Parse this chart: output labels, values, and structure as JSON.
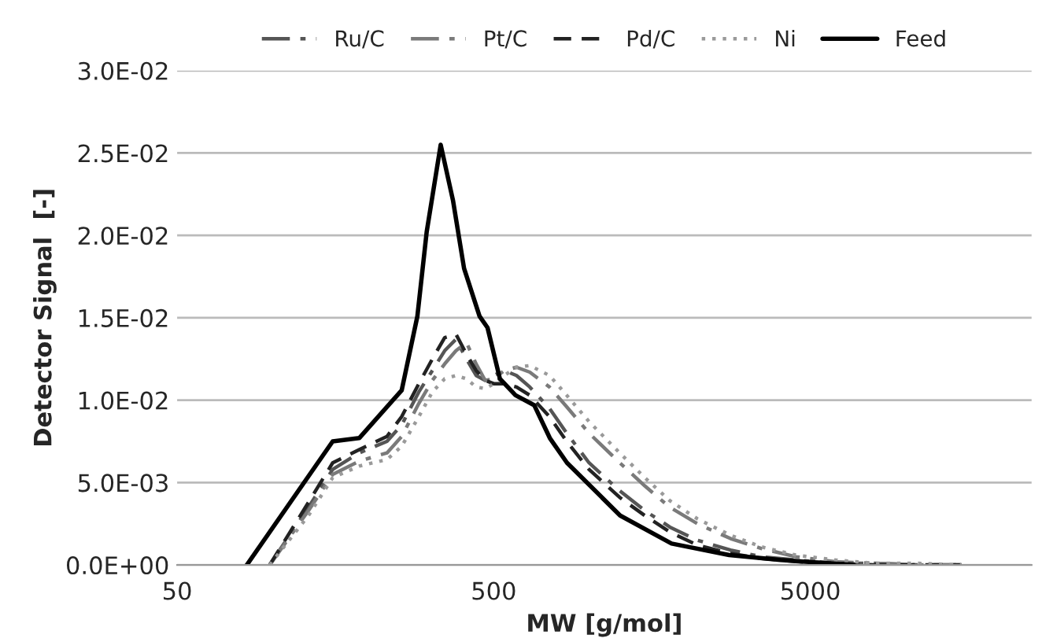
{
  "chart_data": {
    "type": "line",
    "xlabel": "MW [g/mol]",
    "ylabel": "Detector Signal  [-]",
    "log": "x",
    "xlim": [
      50,
      25000
    ],
    "xticks": [
      50,
      500,
      5000
    ],
    "ylim": [
      0,
      0.03
    ],
    "yticks": [
      {
        "value": 0,
        "label": "0.0E+00"
      },
      {
        "value": 0.005,
        "label": "5.0E-03"
      },
      {
        "value": 0.01,
        "label": "1.0E-02"
      },
      {
        "value": 0.015,
        "label": "1.5E-02"
      },
      {
        "value": 0.02,
        "label": "2.0E-02"
      },
      {
        "value": 0.025,
        "label": "2.5E-02"
      },
      {
        "value": 0.03,
        "label": "3.0E-02"
      }
    ],
    "grid": "y",
    "legend": "top",
    "marker": "none",
    "x": [
      98,
      130,
      155,
      188,
      230,
      256,
      290,
      320,
      350,
      380,
      410,
      440,
      470,
      500,
      540,
      590,
      650,
      750,
      850,
      1000,
      1250,
      1500,
      1800,
      2200,
      2800,
      3500,
      4500,
      6000,
      8000,
      11000,
      15000
    ],
    "series": [
      {
        "name": "Ru/C",
        "color": "#555555",
        "line_style": "dashdot",
        "values": [
          0,
          0.0035,
          0.0058,
          0.0068,
          0.0075,
          0.0085,
          0.0105,
          0.0118,
          0.013,
          0.0137,
          0.0125,
          0.0115,
          0.0112,
          0.0115,
          0.0118,
          0.0115,
          0.0108,
          0.0095,
          0.008,
          0.0062,
          0.0045,
          0.0033,
          0.0023,
          0.0015,
          0.0009,
          0.0005,
          0.0003,
          0.0001,
          0.0001,
          0,
          0
        ]
      },
      {
        "name": "Pt/C",
        "color": "#7a7a7a",
        "line_style": "dashdot",
        "values": [
          0,
          0.0033,
          0.0055,
          0.0063,
          0.0068,
          0.0078,
          0.0098,
          0.0112,
          0.0122,
          0.013,
          0.0135,
          0.0122,
          0.0112,
          0.0113,
          0.0118,
          0.012,
          0.0117,
          0.0108,
          0.0096,
          0.008,
          0.0062,
          0.0048,
          0.0035,
          0.0025,
          0.0016,
          0.001,
          0.0005,
          0.0002,
          0.0001,
          0,
          0
        ]
      },
      {
        "name": "Pd/C",
        "color": "#222222",
        "line_style": "dashed",
        "values": [
          0,
          0.0038,
          0.0062,
          0.007,
          0.0078,
          0.009,
          0.011,
          0.0125,
          0.0138,
          0.014,
          0.0128,
          0.0118,
          0.0112,
          0.011,
          0.011,
          0.0108,
          0.0103,
          0.009,
          0.0075,
          0.0058,
          0.0041,
          0.003,
          0.002,
          0.0012,
          0.0007,
          0.0004,
          0.0002,
          0.0001,
          0,
          0,
          0
        ]
      },
      {
        "name": "Ni",
        "color": "#9a9a9a",
        "line_style": "dotted",
        "values": [
          0,
          0.003,
          0.0053,
          0.006,
          0.0064,
          0.0072,
          0.009,
          0.0105,
          0.0113,
          0.0115,
          0.0113,
          0.0108,
          0.0107,
          0.011,
          0.0115,
          0.012,
          0.0121,
          0.0115,
          0.0103,
          0.0087,
          0.0068,
          0.0053,
          0.0039,
          0.0028,
          0.0018,
          0.0011,
          0.0006,
          0.0003,
          0.0001,
          0.0001,
          0
        ]
      },
      {
        "name": "Feed",
        "color": "#000000",
        "line_style": "solid",
        "x": [
          83,
          155,
          188,
          256,
          287,
          307,
          340,
          372,
          403,
          451,
          478,
          523,
          586,
          671,
          752,
          852,
          1254,
          1823,
          2773,
          4030,
          6870
        ],
        "values": [
          0,
          0.0075,
          0.0077,
          0.0106,
          0.0151,
          0.0202,
          0.0255,
          0.0221,
          0.018,
          0.0151,
          0.0144,
          0.0113,
          0.0103,
          0.0097,
          0.0077,
          0.0062,
          0.003,
          0.0013,
          0.0006,
          0.0003,
          0
        ]
      }
    ]
  }
}
